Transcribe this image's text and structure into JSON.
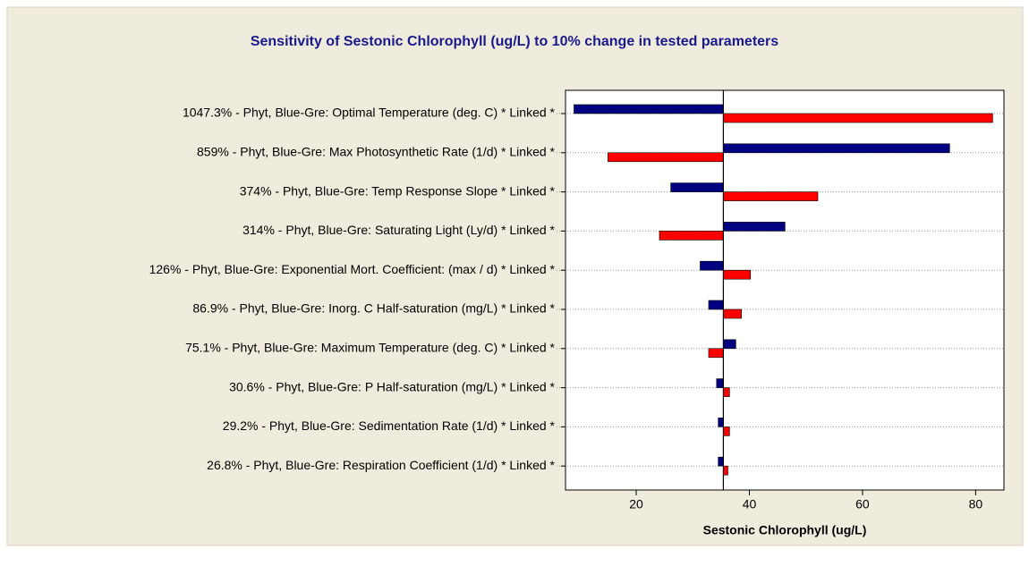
{
  "chart_data": {
    "type": "tornado",
    "title": "Sensitivity of Sestonic Chlorophyll (ug/L) to 10% change in tested parameters",
    "x_label": "Sestonic Chlorophyll (ug/L)",
    "categories": [
      "1047.3% - Phyt, Blue-Gre: Optimal Temperature (deg. C) * Linked *",
      "859% - Phyt, Blue-Gre: Max Photosynthetic Rate (1/d) * Linked *",
      "374% - Phyt, Blue-Gre: Temp Response Slope * Linked *",
      "314% - Phyt, Blue-Gre: Saturating Light (Ly/d) * Linked *",
      "126% - Phyt, Blue-Gre: Exponential Mort. Coefficient: (max / d) * Linked *",
      "86.9% - Phyt, Blue-Gre: Inorg. C Half-saturation (mg/L) * Linked *",
      "75.1% - Phyt, Blue-Gre: Maximum Temperature (deg. C) * Linked *",
      "30.6% - Phyt, Blue-Gre: P Half-saturation (mg/L) * Linked *",
      "29.2% - Phyt, Blue-Gre: Sedimentation Rate (1/d) * Linked *",
      "26.8% - Phyt, Blue-Gre: Respiration Coefficient (1/d) * Linked *"
    ],
    "baseline": 35.4,
    "series": [
      {
        "color": "#000080",
        "values": [
          9.0,
          75.4,
          26.1,
          46.3,
          31.3,
          32.8,
          37.6,
          34.2,
          34.5,
          34.5
        ]
      },
      {
        "color": "#ff0000",
        "values": [
          83.0,
          15.0,
          52.1,
          24.1,
          40.2,
          38.6,
          32.8,
          36.5,
          36.5,
          36.2
        ]
      }
    ],
    "xlim": [
      7.5,
      85
    ],
    "xticks": [
      20,
      40,
      60,
      80
    ],
    "grid": true
  }
}
